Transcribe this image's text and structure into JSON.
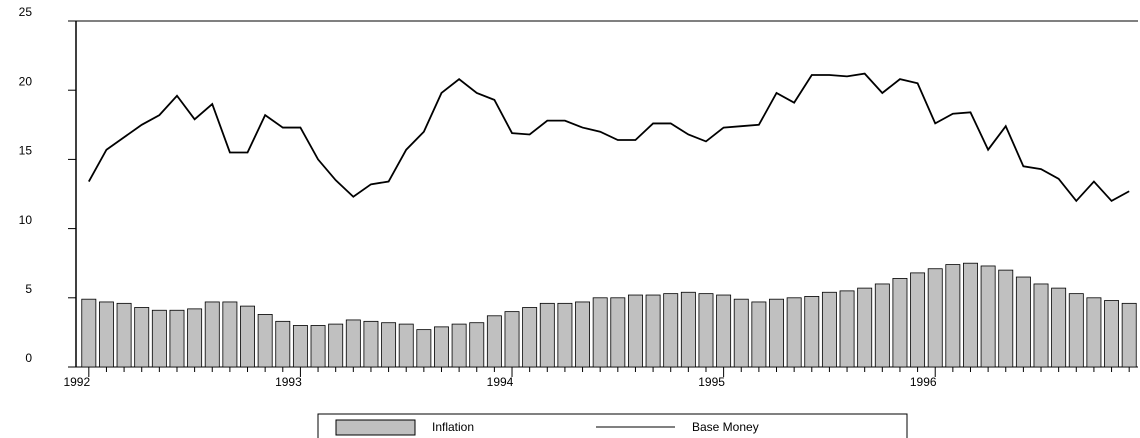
{
  "chart_data": {
    "type": "bar-line",
    "categories": [
      "1992",
      null,
      null,
      null,
      null,
      null,
      null,
      null,
      null,
      null,
      null,
      null,
      "1993",
      null,
      null,
      null,
      null,
      null,
      null,
      null,
      null,
      null,
      null,
      null,
      "1994",
      null,
      null,
      null,
      null,
      null,
      null,
      null,
      null,
      null,
      null,
      null,
      "1995",
      null,
      null,
      null,
      null,
      null,
      null,
      null,
      null,
      null,
      null,
      null,
      "1996",
      null,
      null,
      null,
      null,
      null,
      null,
      null,
      null,
      null,
      null,
      null
    ],
    "series": [
      {
        "name": "Inflation",
        "type": "bar",
        "color": "#c0c0c0",
        "values": [
          4.9,
          4.7,
          4.6,
          4.3,
          4.1,
          4.1,
          4.2,
          4.7,
          4.7,
          4.4,
          3.8,
          3.3,
          3.0,
          3.0,
          3.1,
          3.4,
          3.3,
          3.2,
          3.1,
          2.7,
          2.9,
          3.1,
          3.2,
          3.7,
          4.0,
          4.3,
          4.6,
          4.6,
          4.7,
          5.0,
          5.0,
          5.2,
          5.2,
          5.3,
          5.4,
          5.3,
          5.2,
          4.9,
          4.7,
          4.9,
          5.0,
          5.1,
          5.4,
          5.5,
          5.7,
          6.0,
          6.4,
          6.8,
          7.1,
          7.4,
          7.5,
          7.3,
          7.0,
          6.5,
          6.0,
          5.7,
          5.3,
          5.0,
          4.8,
          4.6
        ]
      },
      {
        "name": "Base Money",
        "type": "line",
        "color": "#000000",
        "values": [
          13.4,
          15.7,
          16.6,
          17.5,
          18.2,
          19.6,
          17.9,
          19.0,
          15.5,
          15.5,
          18.2,
          17.3,
          17.3,
          15.0,
          13.5,
          12.3,
          13.2,
          13.4,
          15.7,
          17.0,
          19.8,
          20.8,
          19.8,
          19.3,
          16.9,
          16.8,
          17.8,
          17.8,
          17.3,
          17.0,
          16.4,
          16.4,
          17.6,
          17.6,
          16.8,
          16.3,
          17.3,
          17.4,
          17.5,
          19.8,
          19.1,
          21.1,
          21.1,
          21.0,
          21.2,
          19.8,
          20.8,
          20.5,
          17.6,
          18.3,
          18.4,
          15.7,
          17.4,
          14.5,
          14.3,
          13.6,
          12.0,
          13.4,
          12.0,
          12.7
        ]
      }
    ],
    "ylim": [
      0,
      25
    ],
    "yticks": [
      0,
      5,
      10,
      15,
      20,
      25
    ],
    "legend": "bottom"
  }
}
